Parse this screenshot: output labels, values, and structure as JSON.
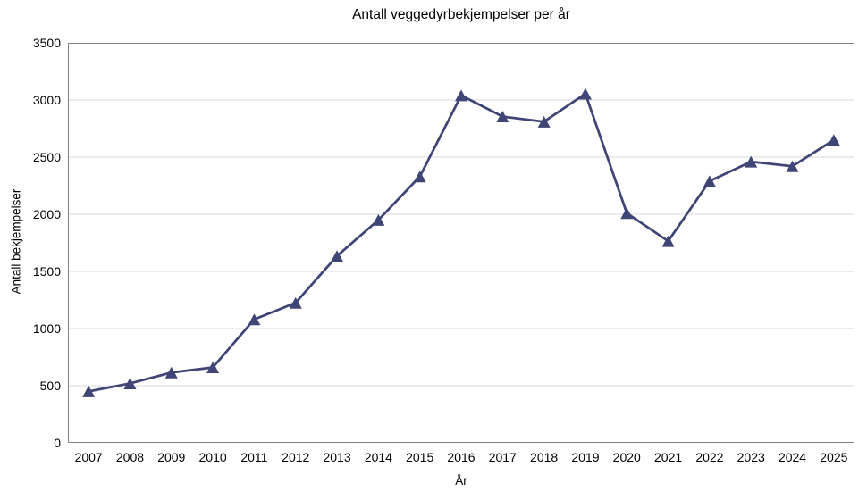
{
  "chart_data": {
    "type": "line",
    "title": "Antall veggedyrbekjempelser per år",
    "xlabel": "År",
    "ylabel": "Antall bekjempelser",
    "categories": [
      "2007",
      "2008",
      "2009",
      "2010",
      "2011",
      "2012",
      "2013",
      "2014",
      "2015",
      "2016",
      "2017",
      "2018",
      "2019",
      "2020",
      "2021",
      "2022",
      "2023",
      "2024",
      "2025"
    ],
    "values": [
      450,
      520,
      615,
      660,
      1080,
      1225,
      1635,
      1950,
      2330,
      3040,
      2855,
      2810,
      3055,
      2010,
      1765,
      2290,
      2460,
      2420,
      2650
    ],
    "ylim": [
      0,
      3500
    ],
    "ytick_step": 500,
    "yticks": [
      3500,
      3000,
      2500,
      2000,
      1500,
      1000,
      500,
      0
    ],
    "grid": "horizontal",
    "legend": "none",
    "marker": "triangle-up",
    "line_color": "#3F4575",
    "gridline_color": "#D9D9D9",
    "axis_color": "#808080",
    "text_color": "#000000"
  }
}
